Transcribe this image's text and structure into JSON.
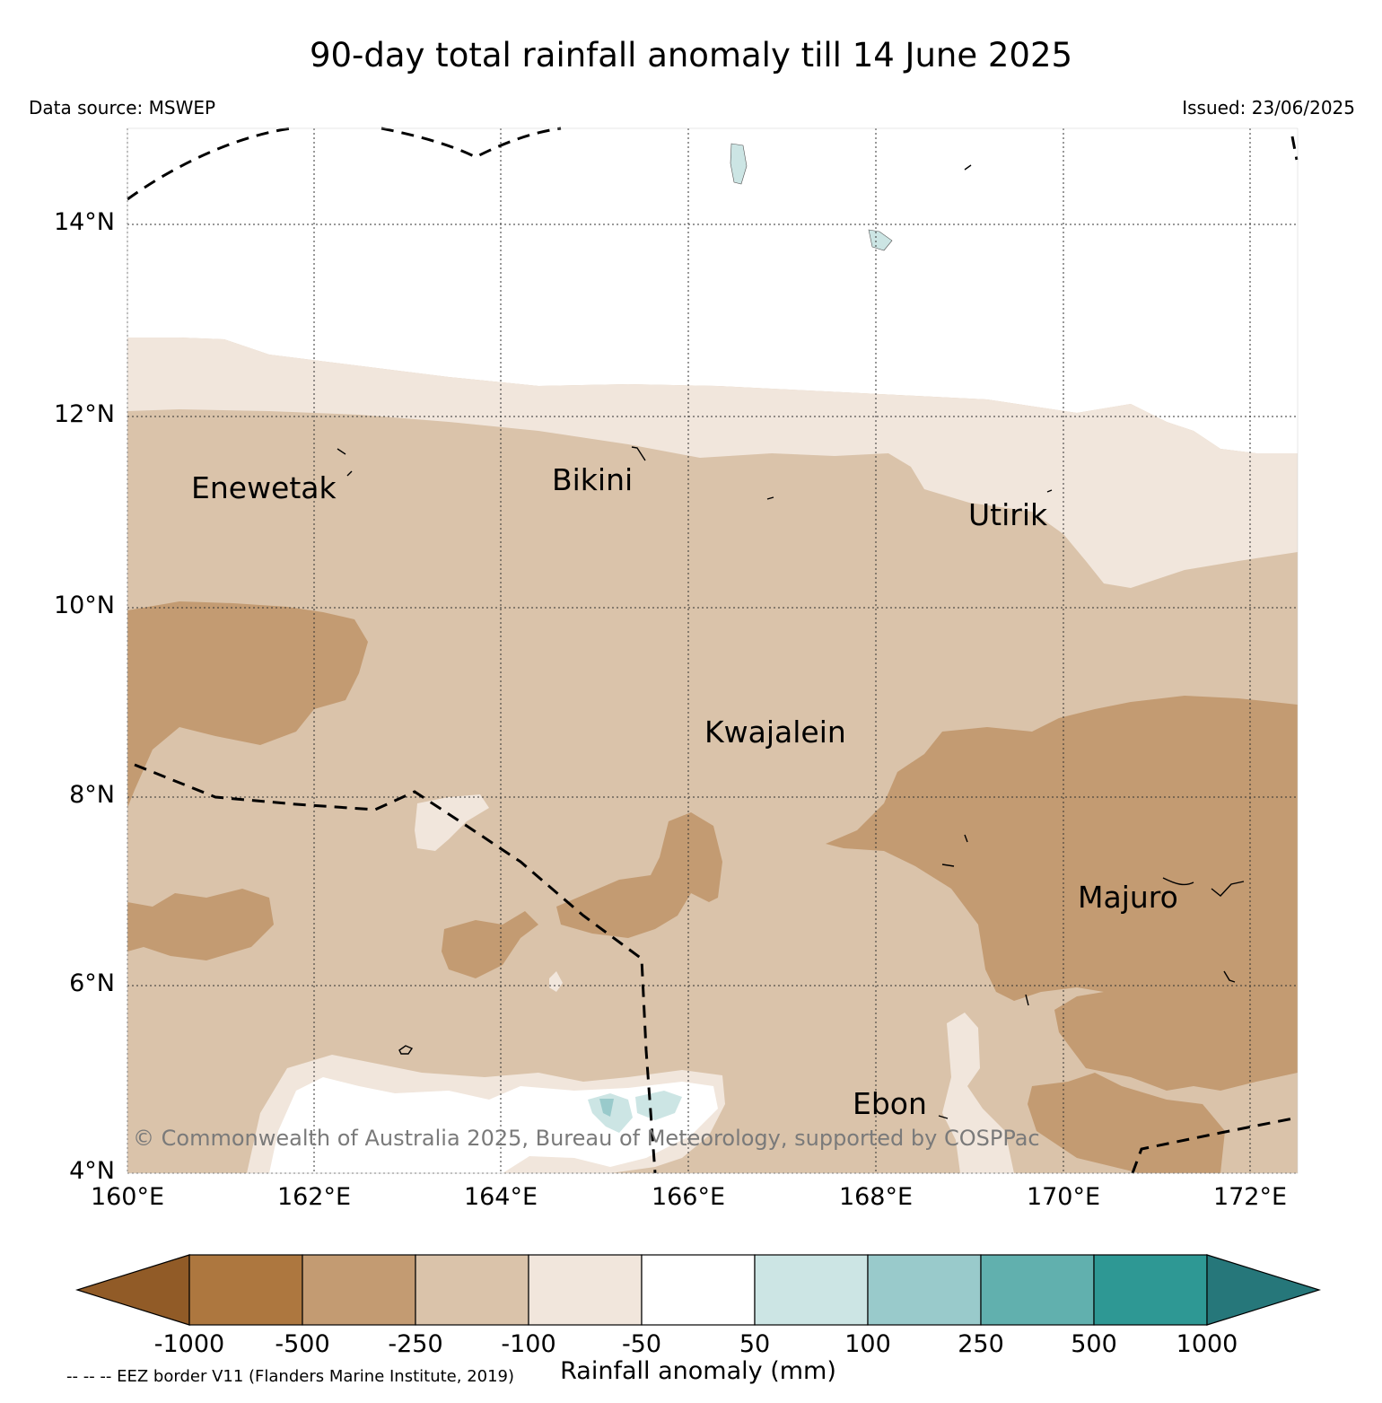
{
  "title": "90-day total rainfall anomaly till 14 June 2025",
  "data_source": "Data source: MSWEP",
  "issued": "Issued: 23/06/2025",
  "copyright": "© Commonwealth of Australia 2025, Bureau of Meteorology, supported by COSPPac",
  "eez_note": "-- -- -- EEZ border V11 (Flanders Marine Institute, 2019)",
  "map": {
    "lon_range": [
      160,
      172.5
    ],
    "lat_range": [
      4,
      15
    ],
    "lat_labels": [
      "4°N",
      "6°N",
      "8°N",
      "10°N",
      "12°N",
      "14°N"
    ],
    "lon_labels": [
      "160°E",
      "162°E",
      "164°E",
      "166°E",
      "168°E",
      "170°E",
      "172°E"
    ],
    "places": [
      {
        "name": "Enewetak",
        "lon": 162.3,
        "lat": 11.4
      },
      {
        "name": "Bikini",
        "lon": 165.5,
        "lat": 11.5
      },
      {
        "name": "Utirik",
        "lon": 169.8,
        "lat": 11.2
      },
      {
        "name": "Kwajalein",
        "lon": 167.7,
        "lat": 8.8
      },
      {
        "name": "Majuro",
        "lon": 171.4,
        "lat": 7.1
      },
      {
        "name": "Ebon",
        "lon": 168.7,
        "lat": 4.6
      }
    ]
  },
  "colorbar": {
    "title": "Rainfall anomaly (mm)",
    "tick_labels": [
      "-1000",
      "-500",
      "-250",
      "-100",
      "-50",
      "50",
      "100",
      "250",
      "500",
      "1000"
    ],
    "colors": {
      "under": "#915b27",
      "bins": [
        "#ad773f",
        "#c39b72",
        "#dac3aa",
        "#f1e6dc",
        "#ffffff",
        "#cce5e4",
        "#99cacb",
        "#61b0ae",
        "#2e9894"
      ],
      "over": "#26777a"
    }
  }
}
